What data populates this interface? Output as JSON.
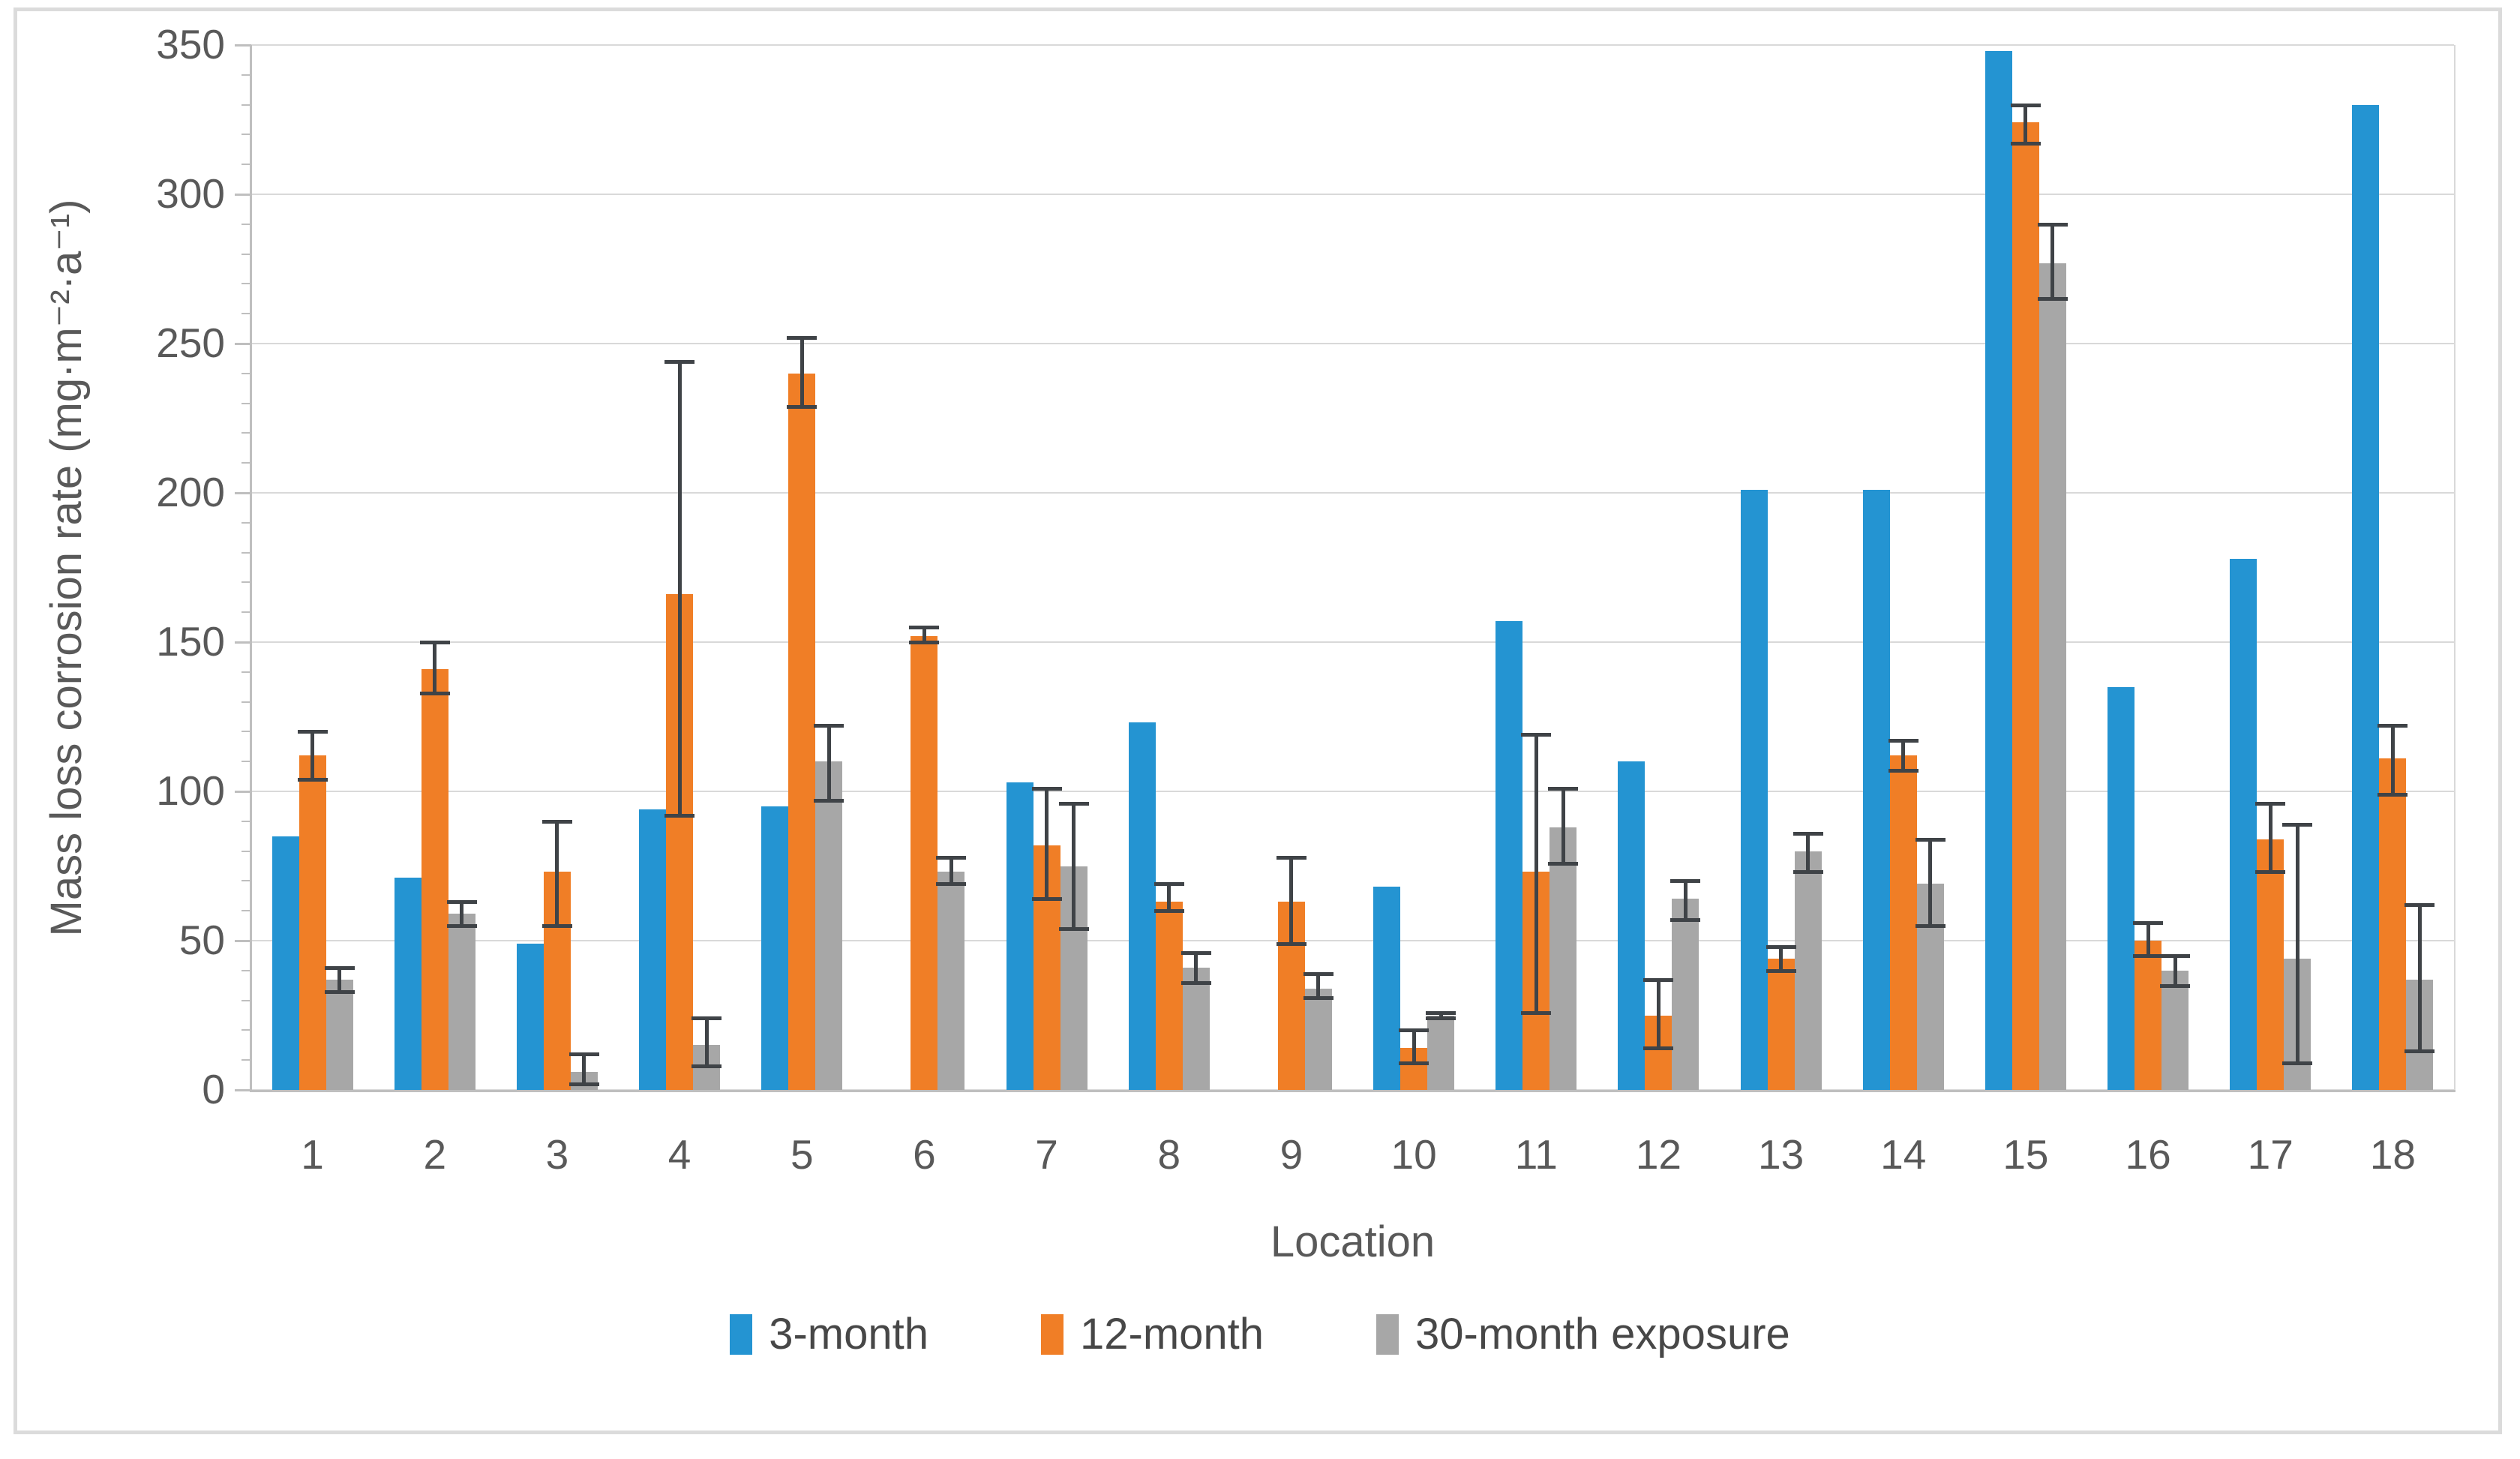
{
  "figure": {
    "background": "#ffffff",
    "frame_border_color": "#dbdbdb"
  },
  "chart_data": {
    "type": "bar",
    "title": "",
    "xlabel": "Location",
    "ylabel": "Mass loss corrosion rate (mg·m⁻²·a⁻¹)",
    "ylim": [
      0,
      350
    ],
    "y_major_step": 50,
    "y_minor_step": 10,
    "y_tick_labels": [
      "0",
      "50",
      "100",
      "150",
      "200",
      "250",
      "300",
      "350"
    ],
    "grid": "horizontal-major",
    "legend_position": "bottom",
    "error_bar_color": "#3f4347",
    "gridline_color": "#d9d9d9",
    "axis_color": "#bfbfbf",
    "categories": [
      "1",
      "2",
      "3",
      "4",
      "5",
      "6",
      "7",
      "8",
      "9",
      "10",
      "11",
      "12",
      "13",
      "14",
      "15",
      "16",
      "17",
      "18"
    ],
    "series": [
      {
        "name": "3-month",
        "color": "#2494d2",
        "values": [
          85,
          71,
          49,
          94,
          95,
          null,
          103,
          123,
          null,
          68,
          157,
          110,
          201,
          201,
          348,
          135,
          178,
          330
        ],
        "errors": [
          null,
          null,
          null,
          null,
          null,
          null,
          null,
          null,
          null,
          null,
          null,
          null,
          null,
          null,
          null,
          null,
          null,
          null
        ]
      },
      {
        "name": "12-month",
        "color": "#f07e26",
        "values": [
          112,
          141,
          73,
          166,
          240,
          152,
          82,
          63,
          63,
          14,
          73,
          25,
          44,
          112,
          324,
          50,
          84,
          111
        ],
        "errors": [
          [
            104,
            120
          ],
          [
            133,
            150
          ],
          [
            55,
            90
          ],
          [
            92,
            244
          ],
          [
            229,
            252
          ],
          [
            150,
            155
          ],
          [
            64,
            101
          ],
          [
            60,
            69
          ],
          [
            49,
            78
          ],
          [
            9,
            20
          ],
          [
            26,
            119
          ],
          [
            14,
            37
          ],
          [
            40,
            48
          ],
          [
            107,
            117
          ],
          [
            317,
            330
          ],
          [
            45,
            56
          ],
          [
            73,
            96
          ],
          [
            99,
            122
          ]
        ]
      },
      {
        "name": "30-month exposure",
        "color": "#a7a7a7",
        "values": [
          37,
          59,
          6,
          15,
          110,
          73,
          75,
          41,
          34,
          25,
          88,
          64,
          80,
          69,
          277,
          40,
          44,
          37
        ],
        "errors": [
          [
            33,
            41
          ],
          [
            55,
            63
          ],
          [
            2,
            12
          ],
          [
            8,
            24
          ],
          [
            97,
            122
          ],
          [
            69,
            78
          ],
          [
            54,
            96
          ],
          [
            36,
            46
          ],
          [
            31,
            39
          ],
          [
            24,
            26
          ],
          [
            76,
            101
          ],
          [
            57,
            70
          ],
          [
            73,
            86
          ],
          [
            55,
            84
          ],
          [
            265,
            290
          ],
          [
            35,
            45
          ],
          [
            9,
            89
          ],
          [
            13,
            62
          ]
        ]
      }
    ]
  }
}
